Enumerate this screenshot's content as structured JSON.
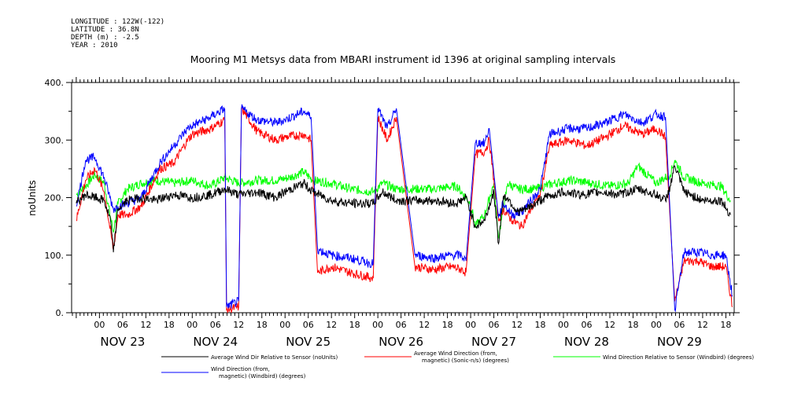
{
  "meta": {
    "longitude": "LONGITUDE : 122W(-122)",
    "latitude": "LATITUDE : 36.8N",
    "depth": "DEPTH (m) : -2.5",
    "year": "YEAR : 2010"
  },
  "chart_data": {
    "type": "line",
    "title": "Mooring M1 Metsys data from MBARI instrument id 1396 at original sampling intervals",
    "ylabel": "noUnits",
    "xlabel": "",
    "ylim": [
      0,
      400
    ],
    "yticks": [
      "0.",
      "100.",
      "200.",
      "300.",
      "400."
    ],
    "xlim": [
      -0.3,
      6.84
    ],
    "hour_ticks": [
      {
        "x": 0.0,
        "label": "00"
      },
      {
        "x": 0.25,
        "label": "06"
      },
      {
        "x": 0.5,
        "label": "12"
      },
      {
        "x": 0.75,
        "label": "18"
      },
      {
        "x": 1.0,
        "label": "00"
      },
      {
        "x": 1.25,
        "label": "06"
      },
      {
        "x": 1.5,
        "label": "12"
      },
      {
        "x": 1.75,
        "label": "18"
      },
      {
        "x": 2.0,
        "label": "00"
      },
      {
        "x": 2.25,
        "label": "06"
      },
      {
        "x": 2.5,
        "label": "12"
      },
      {
        "x": 2.75,
        "label": "18"
      },
      {
        "x": 3.0,
        "label": "00"
      },
      {
        "x": 3.25,
        "label": "06"
      },
      {
        "x": 3.5,
        "label": "12"
      },
      {
        "x": 3.75,
        "label": "18"
      },
      {
        "x": 4.0,
        "label": "00"
      },
      {
        "x": 4.25,
        "label": "06"
      },
      {
        "x": 4.5,
        "label": "12"
      },
      {
        "x": 4.75,
        "label": "18"
      },
      {
        "x": 5.0,
        "label": "00"
      },
      {
        "x": 5.25,
        "label": "06"
      },
      {
        "x": 5.5,
        "label": "12"
      },
      {
        "x": 5.75,
        "label": "18"
      },
      {
        "x": 6.0,
        "label": "00"
      },
      {
        "x": 6.25,
        "label": "06"
      },
      {
        "x": 6.5,
        "label": "12"
      },
      {
        "x": 6.75,
        "label": "18"
      }
    ],
    "day_labels": [
      {
        "x": 0.25,
        "label": "NOV 23"
      },
      {
        "x": 1.25,
        "label": "NOV 24"
      },
      {
        "x": 2.25,
        "label": "NOV 25"
      },
      {
        "x": 3.25,
        "label": "NOV 26"
      },
      {
        "x": 4.25,
        "label": "NOV 27"
      },
      {
        "x": 5.25,
        "label": "NOV 28"
      },
      {
        "x": 6.25,
        "label": "NOV 29"
      }
    ],
    "series": [
      {
        "name": "Average Wind Dir Relative to Sensor (noUnits)",
        "color": "#000000",
        "x": [
          -0.25,
          -0.15,
          -0.05,
          0.05,
          0.12,
          0.15,
          0.2,
          0.3,
          0.45,
          0.6,
          0.8,
          1.0,
          1.2,
          1.35,
          1.5,
          1.7,
          1.9,
          2.0,
          2.2,
          2.3,
          2.5,
          2.7,
          2.95,
          3.05,
          3.2,
          3.4,
          3.6,
          3.85,
          3.95,
          4.05,
          4.15,
          4.25,
          4.3,
          4.35,
          4.4,
          4.5,
          4.6,
          4.7,
          4.8,
          4.9,
          5.0,
          5.2,
          5.4,
          5.6,
          5.8,
          6.0,
          6.1,
          6.15,
          6.2,
          6.3,
          6.5,
          6.7,
          6.8
        ],
        "y": [
          190,
          205,
          200,
          195,
          160,
          105,
          180,
          195,
          200,
          195,
          205,
          200,
          205,
          215,
          205,
          210,
          200,
          210,
          225,
          210,
          195,
          190,
          190,
          210,
          195,
          195,
          195,
          190,
          200,
          150,
          160,
          210,
          120,
          200,
          200,
          175,
          180,
          190,
          200,
          205,
          210,
          205,
          210,
          205,
          215,
          205,
          195,
          220,
          255,
          210,
          195,
          195,
          170
        ]
      },
      {
        "name": "Average Wind Direction (from, magnetic) (Sonic-n/s) (degrees)",
        "color": "#ff0000",
        "x": [
          -0.25,
          -0.15,
          -0.05,
          0.05,
          0.15,
          0.2,
          0.3,
          0.45,
          0.65,
          0.8,
          0.95,
          1.0,
          1.2,
          1.35,
          1.37,
          1.5,
          1.53,
          1.7,
          1.9,
          2.0,
          2.2,
          2.28,
          2.35,
          2.5,
          2.7,
          2.95,
          3.0,
          3.1,
          3.2,
          3.4,
          3.6,
          3.8,
          3.9,
          3.95,
          4.05,
          4.15,
          4.2,
          4.3,
          4.35,
          4.45,
          4.55,
          4.65,
          4.75,
          4.85,
          4.95,
          5.05,
          5.25,
          5.45,
          5.65,
          5.85,
          6.0,
          6.1,
          6.2,
          6.3,
          6.45,
          6.6,
          6.75,
          6.82
        ],
        "y": [
          160,
          230,
          250,
          210,
          110,
          170,
          170,
          185,
          250,
          260,
          300,
          310,
          320,
          335,
          5,
          10,
          355,
          315,
          300,
          305,
          310,
          300,
          70,
          80,
          70,
          60,
          340,
          300,
          340,
          80,
          75,
          80,
          75,
          70,
          275,
          280,
          300,
          160,
          180,
          160,
          150,
          180,
          205,
          290,
          295,
          300,
          290,
          305,
          325,
          310,
          320,
          305,
          20,
          90,
          90,
          80,
          80,
          10
        ]
      },
      {
        "name": "Wind Direction Relative to Sensor (Windbird) (degrees)",
        "color": "#00ff00",
        "x": [
          -0.25,
          -0.15,
          -0.05,
          0.05,
          0.15,
          0.2,
          0.3,
          0.45,
          0.6,
          0.8,
          1.0,
          1.2,
          1.35,
          1.5,
          1.7,
          1.9,
          2.05,
          2.2,
          2.3,
          2.5,
          2.7,
          2.95,
          3.05,
          3.2,
          3.4,
          3.6,
          3.85,
          4.0,
          4.05,
          4.15,
          4.25,
          4.3,
          4.4,
          4.5,
          4.7,
          4.9,
          5.1,
          5.3,
          5.5,
          5.7,
          5.8,
          6.0,
          6.15,
          6.2,
          6.3,
          6.5,
          6.7,
          6.8
        ],
        "y": [
          205,
          220,
          240,
          225,
          140,
          190,
          215,
          225,
          230,
          225,
          230,
          220,
          235,
          225,
          230,
          230,
          235,
          245,
          230,
          225,
          215,
          210,
          225,
          215,
          215,
          215,
          220,
          190,
          150,
          170,
          225,
          130,
          225,
          215,
          215,
          225,
          230,
          225,
          220,
          225,
          255,
          225,
          240,
          265,
          235,
          225,
          220,
          195
        ]
      },
      {
        "name": "Wind Direction (from, magnetic) (Windbird) (degrees)",
        "color": "#0000ff",
        "x": [
          -0.25,
          -0.15,
          -0.05,
          0.05,
          0.15,
          0.2,
          0.3,
          0.45,
          0.65,
          0.8,
          0.95,
          1.0,
          1.2,
          1.35,
          1.37,
          1.5,
          1.53,
          1.7,
          1.9,
          2.0,
          2.2,
          2.28,
          2.35,
          2.5,
          2.7,
          2.95,
          3.0,
          3.1,
          3.2,
          3.4,
          3.6,
          3.8,
          3.9,
          3.95,
          4.05,
          4.15,
          4.2,
          4.3,
          4.35,
          4.45,
          4.55,
          4.65,
          4.75,
          4.85,
          4.95,
          5.05,
          5.25,
          5.45,
          5.65,
          5.85,
          6.0,
          6.1,
          6.2,
          6.3,
          6.45,
          6.6,
          6.75,
          6.82
        ],
        "y": [
          185,
          265,
          270,
          235,
          180,
          185,
          190,
          200,
          260,
          290,
          320,
          325,
          340,
          355,
          10,
          20,
          355,
          335,
          330,
          335,
          350,
          340,
          110,
          100,
          95,
          85,
          355,
          320,
          355,
          100,
          95,
          100,
          100,
          90,
          295,
          295,
          320,
          165,
          190,
          170,
          175,
          195,
          215,
          310,
          315,
          320,
          320,
          330,
          345,
          330,
          345,
          340,
          5,
          105,
          105,
          100,
          100,
          30
        ]
      }
    ],
    "legend": [
      {
        "label1": "Average Wind Dir Relative to Sensor (noUnits)",
        "label2": ""
      },
      {
        "label1": "Average Wind Direction (from,",
        "label2": "magnetic) (Sonic-n/s) (degrees)"
      },
      {
        "label1": "Wind Direction Relative to Sensor (Windbird) (degrees)",
        "label2": ""
      },
      {
        "label1": "Wind Direction (from,",
        "label2": "magnetic) (Windbird) (degrees)"
      }
    ],
    "legend_placement": "bottom",
    "grid": false
  }
}
